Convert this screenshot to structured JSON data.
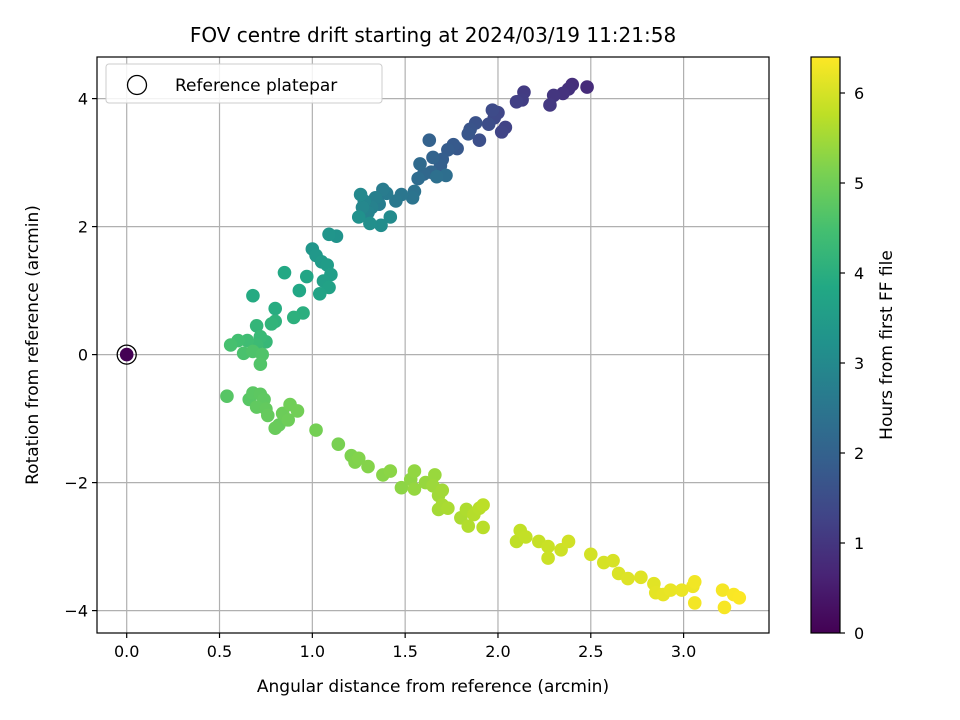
{
  "chart_data": {
    "type": "scatter",
    "title": "FOV centre drift starting at 2024/03/19 11:21:58",
    "xlabel": "Angular distance from reference (arcmin)",
    "ylabel": "Rotation from reference (arcmin)",
    "xlim": [
      -0.16,
      3.46
    ],
    "ylim": [
      -4.35,
      4.65
    ],
    "xticks": [
      0.0,
      0.5,
      1.0,
      1.5,
      2.0,
      2.5,
      3.0
    ],
    "xtick_labels": [
      "0.0",
      "0.5",
      "1.0",
      "1.5",
      "2.0",
      "2.5",
      "3.0"
    ],
    "yticks": [
      -4,
      -2,
      0,
      2,
      4
    ],
    "ytick_labels": [
      "−4",
      "−2",
      "0",
      "2",
      "4"
    ],
    "grid": true,
    "legend": {
      "placement": "top-left",
      "entries": [
        "Reference platepar"
      ]
    },
    "colorbar": {
      "label": "Hours from first FF file",
      "range": [
        0,
        6.4
      ],
      "ticks": [
        0,
        1,
        2,
        3,
        4,
        5,
        6
      ],
      "tick_labels": [
        "0",
        "1",
        "2",
        "3",
        "4",
        "5",
        "6"
      ],
      "colormap": "viridis"
    },
    "reference_point": {
      "x": 0.0,
      "y": 0.0,
      "t": 0.0
    },
    "points": [
      {
        "x": 2.48,
        "y": 4.18,
        "t": 0.8
      },
      {
        "x": 2.4,
        "y": 4.22,
        "t": 0.85
      },
      {
        "x": 2.38,
        "y": 4.15,
        "t": 0.9
      },
      {
        "x": 2.35,
        "y": 4.08,
        "t": 0.95
      },
      {
        "x": 2.3,
        "y": 4.05,
        "t": 1.0
      },
      {
        "x": 2.28,
        "y": 3.9,
        "t": 1.05
      },
      {
        "x": 2.14,
        "y": 4.1,
        "t": 1.1
      },
      {
        "x": 2.13,
        "y": 3.98,
        "t": 1.15
      },
      {
        "x": 2.1,
        "y": 3.95,
        "t": 1.2
      },
      {
        "x": 2.04,
        "y": 3.55,
        "t": 1.25
      },
      {
        "x": 2.02,
        "y": 3.48,
        "t": 1.3
      },
      {
        "x": 2.0,
        "y": 3.78,
        "t": 1.35
      },
      {
        "x": 1.98,
        "y": 3.7,
        "t": 1.4
      },
      {
        "x": 1.97,
        "y": 3.82,
        "t": 1.45
      },
      {
        "x": 1.95,
        "y": 3.6,
        "t": 1.5
      },
      {
        "x": 1.9,
        "y": 3.35,
        "t": 1.55
      },
      {
        "x": 1.88,
        "y": 3.62,
        "t": 1.6
      },
      {
        "x": 1.85,
        "y": 3.52,
        "t": 1.65
      },
      {
        "x": 1.84,
        "y": 3.45,
        "t": 1.7
      },
      {
        "x": 1.78,
        "y": 3.22,
        "t": 1.75
      },
      {
        "x": 1.76,
        "y": 3.28,
        "t": 1.8
      },
      {
        "x": 1.73,
        "y": 3.2,
        "t": 1.85
      },
      {
        "x": 1.7,
        "y": 3.05,
        "t": 1.9
      },
      {
        "x": 1.69,
        "y": 2.95,
        "t": 1.95
      },
      {
        "x": 1.63,
        "y": 3.35,
        "t": 2.0
      },
      {
        "x": 1.65,
        "y": 3.08,
        "t": 2.05
      },
      {
        "x": 1.64,
        "y": 2.85,
        "t": 2.1
      },
      {
        "x": 1.6,
        "y": 2.82,
        "t": 2.15
      },
      {
        "x": 1.58,
        "y": 2.98,
        "t": 2.2
      },
      {
        "x": 1.57,
        "y": 2.75,
        "t": 2.25
      },
      {
        "x": 1.72,
        "y": 2.8,
        "t": 2.3
      },
      {
        "x": 1.67,
        "y": 2.78,
        "t": 2.35
      },
      {
        "x": 1.55,
        "y": 2.55,
        "t": 2.4
      },
      {
        "x": 1.54,
        "y": 2.45,
        "t": 2.45
      },
      {
        "x": 1.48,
        "y": 2.5,
        "t": 2.5
      },
      {
        "x": 1.45,
        "y": 2.4,
        "t": 2.55
      },
      {
        "x": 1.4,
        "y": 2.52,
        "t": 2.6
      },
      {
        "x": 1.38,
        "y": 2.58,
        "t": 2.65
      },
      {
        "x": 1.36,
        "y": 2.35,
        "t": 2.7
      },
      {
        "x": 1.34,
        "y": 2.45,
        "t": 2.75
      },
      {
        "x": 1.32,
        "y": 2.3,
        "t": 2.8
      },
      {
        "x": 1.3,
        "y": 2.22,
        "t": 2.85
      },
      {
        "x": 1.28,
        "y": 2.4,
        "t": 2.9
      },
      {
        "x": 1.27,
        "y": 2.3,
        "t": 2.95
      },
      {
        "x": 1.26,
        "y": 2.5,
        "t": 3.0
      },
      {
        "x": 1.42,
        "y": 2.15,
        "t": 3.05
      },
      {
        "x": 1.37,
        "y": 2.02,
        "t": 3.1
      },
      {
        "x": 1.31,
        "y": 2.05,
        "t": 3.15
      },
      {
        "x": 1.25,
        "y": 2.15,
        "t": 3.2
      },
      {
        "x": 1.13,
        "y": 1.85,
        "t": 3.25
      },
      {
        "x": 1.09,
        "y": 1.88,
        "t": 3.3
      },
      {
        "x": 1.0,
        "y": 1.65,
        "t": 3.35
      },
      {
        "x": 1.02,
        "y": 1.55,
        "t": 3.4
      },
      {
        "x": 1.05,
        "y": 1.45,
        "t": 3.45
      },
      {
        "x": 1.08,
        "y": 1.4,
        "t": 3.5
      },
      {
        "x": 1.1,
        "y": 1.25,
        "t": 3.55
      },
      {
        "x": 1.06,
        "y": 1.15,
        "t": 3.6
      },
      {
        "x": 1.09,
        "y": 1.05,
        "t": 3.65
      },
      {
        "x": 1.04,
        "y": 0.95,
        "t": 3.7
      },
      {
        "x": 0.97,
        "y": 1.22,
        "t": 3.75
      },
      {
        "x": 0.93,
        "y": 1.0,
        "t": 3.8
      },
      {
        "x": 0.85,
        "y": 1.28,
        "t": 3.85
      },
      {
        "x": 0.68,
        "y": 0.92,
        "t": 3.9
      },
      {
        "x": 0.8,
        "y": 0.72,
        "t": 3.95
      },
      {
        "x": 0.95,
        "y": 0.65,
        "t": 4.0
      },
      {
        "x": 0.9,
        "y": 0.58,
        "t": 4.05
      },
      {
        "x": 0.8,
        "y": 0.52,
        "t": 4.1
      },
      {
        "x": 0.78,
        "y": 0.48,
        "t": 4.15
      },
      {
        "x": 0.7,
        "y": 0.45,
        "t": 4.2
      },
      {
        "x": 0.75,
        "y": 0.2,
        "t": 4.25
      },
      {
        "x": 0.72,
        "y": 0.28,
        "t": 4.3
      },
      {
        "x": 0.7,
        "y": 0.15,
        "t": 4.35
      },
      {
        "x": 0.65,
        "y": 0.22,
        "t": 4.4
      },
      {
        "x": 0.6,
        "y": 0.22,
        "t": 4.45
      },
      {
        "x": 0.56,
        "y": 0.15,
        "t": 4.5
      },
      {
        "x": 0.63,
        "y": 0.02,
        "t": 4.55
      },
      {
        "x": 0.68,
        "y": 0.05,
        "t": 4.6
      },
      {
        "x": 0.73,
        "y": 0.0,
        "t": 4.62
      },
      {
        "x": 0.72,
        "y": -0.15,
        "t": 4.65
      },
      {
        "x": 0.54,
        "y": -0.65,
        "t": 4.7
      },
      {
        "x": 0.66,
        "y": -0.7,
        "t": 4.72
      },
      {
        "x": 0.68,
        "y": -0.6,
        "t": 4.75
      },
      {
        "x": 0.72,
        "y": -0.62,
        "t": 4.78
      },
      {
        "x": 0.74,
        "y": -0.7,
        "t": 4.8
      },
      {
        "x": 0.7,
        "y": -0.82,
        "t": 4.82
      },
      {
        "x": 0.75,
        "y": -0.85,
        "t": 4.85
      },
      {
        "x": 0.76,
        "y": -0.95,
        "t": 4.88
      },
      {
        "x": 0.82,
        "y": -1.1,
        "t": 4.9
      },
      {
        "x": 0.8,
        "y": -1.15,
        "t": 4.92
      },
      {
        "x": 0.84,
        "y": -0.92,
        "t": 4.95
      },
      {
        "x": 0.87,
        "y": -1.02,
        "t": 4.98
      },
      {
        "x": 0.88,
        "y": -0.78,
        "t": 5.0
      },
      {
        "x": 0.92,
        "y": -0.88,
        "t": 5.02
      },
      {
        "x": 1.02,
        "y": -1.18,
        "t": 5.05
      },
      {
        "x": 1.14,
        "y": -1.4,
        "t": 5.1
      },
      {
        "x": 1.21,
        "y": -1.58,
        "t": 5.15
      },
      {
        "x": 1.23,
        "y": -1.68,
        "t": 5.18
      },
      {
        "x": 1.25,
        "y": -1.62,
        "t": 5.2
      },
      {
        "x": 1.3,
        "y": -1.75,
        "t": 5.22
      },
      {
        "x": 1.38,
        "y": -1.88,
        "t": 5.25
      },
      {
        "x": 1.42,
        "y": -1.82,
        "t": 5.28
      },
      {
        "x": 1.48,
        "y": -2.08,
        "t": 5.3
      },
      {
        "x": 1.53,
        "y": -1.95,
        "t": 5.32
      },
      {
        "x": 1.55,
        "y": -1.82,
        "t": 5.35
      },
      {
        "x": 1.55,
        "y": -2.1,
        "t": 5.38
      },
      {
        "x": 1.61,
        "y": -2.0,
        "t": 5.4
      },
      {
        "x": 1.66,
        "y": -1.88,
        "t": 5.42
      },
      {
        "x": 1.65,
        "y": -2.05,
        "t": 5.45
      },
      {
        "x": 1.68,
        "y": -2.2,
        "t": 5.48
      },
      {
        "x": 1.7,
        "y": -2.12,
        "t": 5.5
      },
      {
        "x": 1.68,
        "y": -2.42,
        "t": 5.52
      },
      {
        "x": 1.7,
        "y": -2.35,
        "t": 5.55
      },
      {
        "x": 1.73,
        "y": -2.4,
        "t": 5.58
      },
      {
        "x": 1.8,
        "y": -2.55,
        "t": 5.6
      },
      {
        "x": 1.83,
        "y": -2.42,
        "t": 5.62
      },
      {
        "x": 1.84,
        "y": -2.68,
        "t": 5.65
      },
      {
        "x": 1.87,
        "y": -2.5,
        "t": 5.68
      },
      {
        "x": 1.9,
        "y": -2.4,
        "t": 5.7
      },
      {
        "x": 1.92,
        "y": -2.7,
        "t": 5.72
      },
      {
        "x": 1.92,
        "y": -2.35,
        "t": 5.75
      },
      {
        "x": 2.1,
        "y": -2.92,
        "t": 5.78
      },
      {
        "x": 2.12,
        "y": -2.75,
        "t": 5.8
      },
      {
        "x": 2.15,
        "y": -2.85,
        "t": 5.82
      },
      {
        "x": 2.22,
        "y": -2.92,
        "t": 5.85
      },
      {
        "x": 2.27,
        "y": -3.0,
        "t": 5.88
      },
      {
        "x": 2.27,
        "y": -3.18,
        "t": 5.9
      },
      {
        "x": 2.34,
        "y": -3.05,
        "t": 5.92
      },
      {
        "x": 2.38,
        "y": -2.92,
        "t": 5.95
      },
      {
        "x": 2.5,
        "y": -3.12,
        "t": 5.98
      },
      {
        "x": 2.57,
        "y": -3.25,
        "t": 6.0
      },
      {
        "x": 2.62,
        "y": -3.22,
        "t": 6.02
      },
      {
        "x": 2.65,
        "y": -3.42,
        "t": 6.05
      },
      {
        "x": 2.7,
        "y": -3.5,
        "t": 6.08
      },
      {
        "x": 2.77,
        "y": -3.48,
        "t": 6.1
      },
      {
        "x": 2.84,
        "y": -3.58,
        "t": 6.12
      },
      {
        "x": 2.85,
        "y": -3.72,
        "t": 6.15
      },
      {
        "x": 2.89,
        "y": -3.75,
        "t": 6.18
      },
      {
        "x": 2.93,
        "y": -3.68,
        "t": 6.2
      },
      {
        "x": 2.99,
        "y": -3.68,
        "t": 6.22
      },
      {
        "x": 3.05,
        "y": -3.62,
        "t": 6.25
      },
      {
        "x": 3.06,
        "y": -3.55,
        "t": 6.28
      },
      {
        "x": 3.06,
        "y": -3.88,
        "t": 6.3
      },
      {
        "x": 3.21,
        "y": -3.68,
        "t": 6.32
      },
      {
        "x": 3.22,
        "y": -3.95,
        "t": 6.34
      },
      {
        "x": 3.27,
        "y": -3.75,
        "t": 6.36
      },
      {
        "x": 3.3,
        "y": -3.8,
        "t": 6.38
      }
    ]
  }
}
